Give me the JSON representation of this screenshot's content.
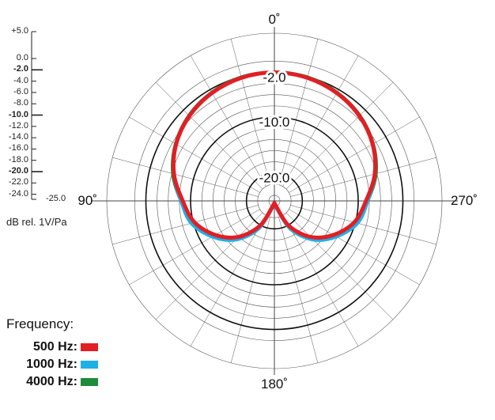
{
  "chart_data": {
    "type": "polar",
    "title": "",
    "angle_labels": [
      {
        "angle": 0,
        "text": "0˚"
      },
      {
        "angle": 90,
        "text": "90˚"
      },
      {
        "angle": 180,
        "text": "180˚"
      },
      {
        "angle": 270,
        "text": "270˚"
      }
    ],
    "radial_range_db": [
      -25,
      5
    ],
    "radial_gridlines_db": [
      5,
      0,
      -2,
      -4,
      -6,
      -8,
      -10,
      -12,
      -14,
      -16,
      -18,
      -20,
      -22,
      -24
    ],
    "major_gridlines_db": [
      -2,
      -10,
      -20
    ],
    "ring_labels": [
      {
        "value": -2,
        "text": "-2.0"
      },
      {
        "value": -10,
        "text": "-10.0"
      },
      {
        "value": -20,
        "text": "-20.0"
      }
    ],
    "angular_gridline_step_deg": 15,
    "scale": {
      "unit_label": "dB rel. 1V/Pa",
      "ticks": [
        {
          "value": 5,
          "text": "+5.0",
          "major": false
        },
        {
          "value": 0,
          "text": "0.0",
          "major": false
        },
        {
          "value": -2,
          "text": "-2.0",
          "major": true
        },
        {
          "value": -4,
          "text": "-4.0",
          "major": false
        },
        {
          "value": -6,
          "text": "-6.0",
          "major": false
        },
        {
          "value": -8,
          "text": "-8.0",
          "major": false
        },
        {
          "value": -10,
          "text": "-10.0",
          "major": true
        },
        {
          "value": -12,
          "text": "-12.0",
          "major": false
        },
        {
          "value": -14,
          "text": "-14.0",
          "major": false
        },
        {
          "value": -16,
          "text": "-16.0",
          "major": false
        },
        {
          "value": -18,
          "text": "-18.0",
          "major": false
        },
        {
          "value": -20,
          "text": "-20.0",
          "major": true
        },
        {
          "value": -22,
          "text": "-22.0",
          "major": false
        },
        {
          "value": -24,
          "text": "-24.0",
          "major": false
        },
        {
          "value": -25,
          "text": "-25.0",
          "major": false
        }
      ]
    },
    "legend_title": "Frequency:",
    "series": [
      {
        "name": "4000 Hz:",
        "color": "#1e8c3a",
        "angles_deg": [
          0,
          15,
          30,
          45,
          60,
          75,
          90,
          105,
          120,
          135,
          150,
          165,
          180,
          195,
          210,
          225,
          240,
          255,
          270,
          285,
          300,
          315,
          330,
          345
        ],
        "values_db": [
          -2.0,
          -2.1,
          -2.6,
          -3.4,
          -4.6,
          -6.2,
          -8.3,
          -9.9,
          -12.6,
          -15.6,
          -19.6,
          -24.1,
          -24.4,
          -24.1,
          -19.6,
          -15.6,
          -12.6,
          -9.9,
          -8.3,
          -6.2,
          -4.6,
          -3.4,
          -2.6,
          -2.1
        ]
      },
      {
        "name": "1000 Hz:",
        "color": "#1fb0e6",
        "angles_deg": [
          0,
          15,
          30,
          45,
          60,
          75,
          90,
          105,
          120,
          135,
          150,
          165,
          180,
          195,
          210,
          225,
          240,
          255,
          270,
          285,
          300,
          315,
          330,
          345
        ],
        "values_db": [
          -2.0,
          -2.2,
          -2.7,
          -3.5,
          -4.7,
          -6.4,
          -8.3,
          -9.6,
          -12.2,
          -15.2,
          -19.2,
          -23.8,
          -24.2,
          -23.8,
          -19.2,
          -15.2,
          -12.2,
          -9.6,
          -8.3,
          -6.4,
          -4.7,
          -3.5,
          -2.7,
          -2.2
        ]
      },
      {
        "name": "500 Hz:",
        "color": "#e31e24",
        "angles_deg": [
          0,
          15,
          30,
          45,
          60,
          75,
          90,
          105,
          120,
          135,
          150,
          165,
          180,
          195,
          210,
          225,
          240,
          255,
          270,
          285,
          300,
          315,
          330,
          345
        ],
        "values_db": [
          -2.0,
          -2.2,
          -2.7,
          -3.5,
          -4.7,
          -6.4,
          -8.6,
          -10.2,
          -12.8,
          -15.9,
          -19.9,
          -24.2,
          -24.5,
          -24.2,
          -19.9,
          -15.9,
          -12.8,
          -10.2,
          -8.6,
          -6.4,
          -4.7,
          -3.5,
          -2.7,
          -2.2
        ]
      }
    ]
  }
}
